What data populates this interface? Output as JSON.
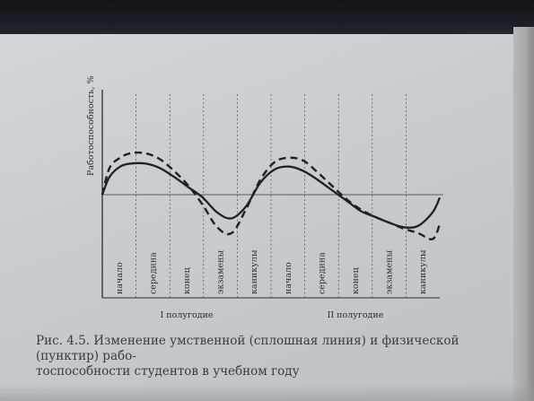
{
  "chart_data": {
    "type": "line",
    "ylabel": "Работоспособность, %",
    "categories": [
      "начало",
      "середина",
      "конец",
      "экзамены",
      "каникулы",
      "начало",
      "середина",
      "конец",
      "экзамены",
      "каникулы"
    ],
    "groups": [
      {
        "label": "I полугодие",
        "categories": [
          "начало",
          "середина",
          "конец",
          "экзамены",
          "каникулы"
        ]
      },
      {
        "label": "II полугодие",
        "categories": [
          "начало",
          "середина",
          "конец",
          "экзамены",
          "каникулы"
        ]
      }
    ],
    "grid": "vertical-dashed",
    "baseline_line": true,
    "series": [
      {
        "style": "solid",
        "x": [
          0,
          0.2,
          0.5,
          0.8,
          1.2,
          1.6,
          2.0,
          2.4,
          2.8,
          3.2,
          3.6,
          4.0,
          4.4,
          4.8,
          5.2,
          5.6,
          6.0,
          6.4,
          6.8,
          7.2,
          7.6,
          8.0,
          8.4,
          8.8,
          9.2,
          9.4
        ],
        "values": [
          0,
          12,
          19,
          21,
          21,
          18,
          12,
          5,
          -2,
          -12,
          -16,
          -8,
          8,
          17,
          19,
          16,
          10,
          3,
          -4,
          -11,
          -15,
          -19,
          -22,
          -21,
          -12,
          -2
        ]
      },
      {
        "style": "dashed",
        "x": [
          0,
          0.2,
          0.5,
          0.8,
          1.2,
          1.6,
          2.0,
          2.4,
          2.8,
          3.2,
          3.6,
          4.0,
          4.4,
          4.8,
          5.2,
          5.6,
          6.0,
          6.4,
          6.8,
          7.2,
          7.6,
          8.0,
          8.4,
          8.8,
          9.2,
          9.4
        ],
        "values": [
          0,
          18,
          25,
          28,
          28,
          24,
          16,
          6,
          -7,
          -22,
          -26,
          -10,
          10,
          22,
          25,
          23,
          15,
          6,
          -3,
          -10,
          -15,
          -19,
          -23,
          -26,
          -30,
          -20
        ]
      }
    ]
  },
  "caption": {
    "line1": "Рис. 4.5. Изменение умственной (сплошная линия) и физической (пунктир) рабо-",
    "line2": "тоспособности студентов в учебном году"
  },
  "colors": {
    "paper": "#c9ccce",
    "ink": "#2b2d31"
  }
}
